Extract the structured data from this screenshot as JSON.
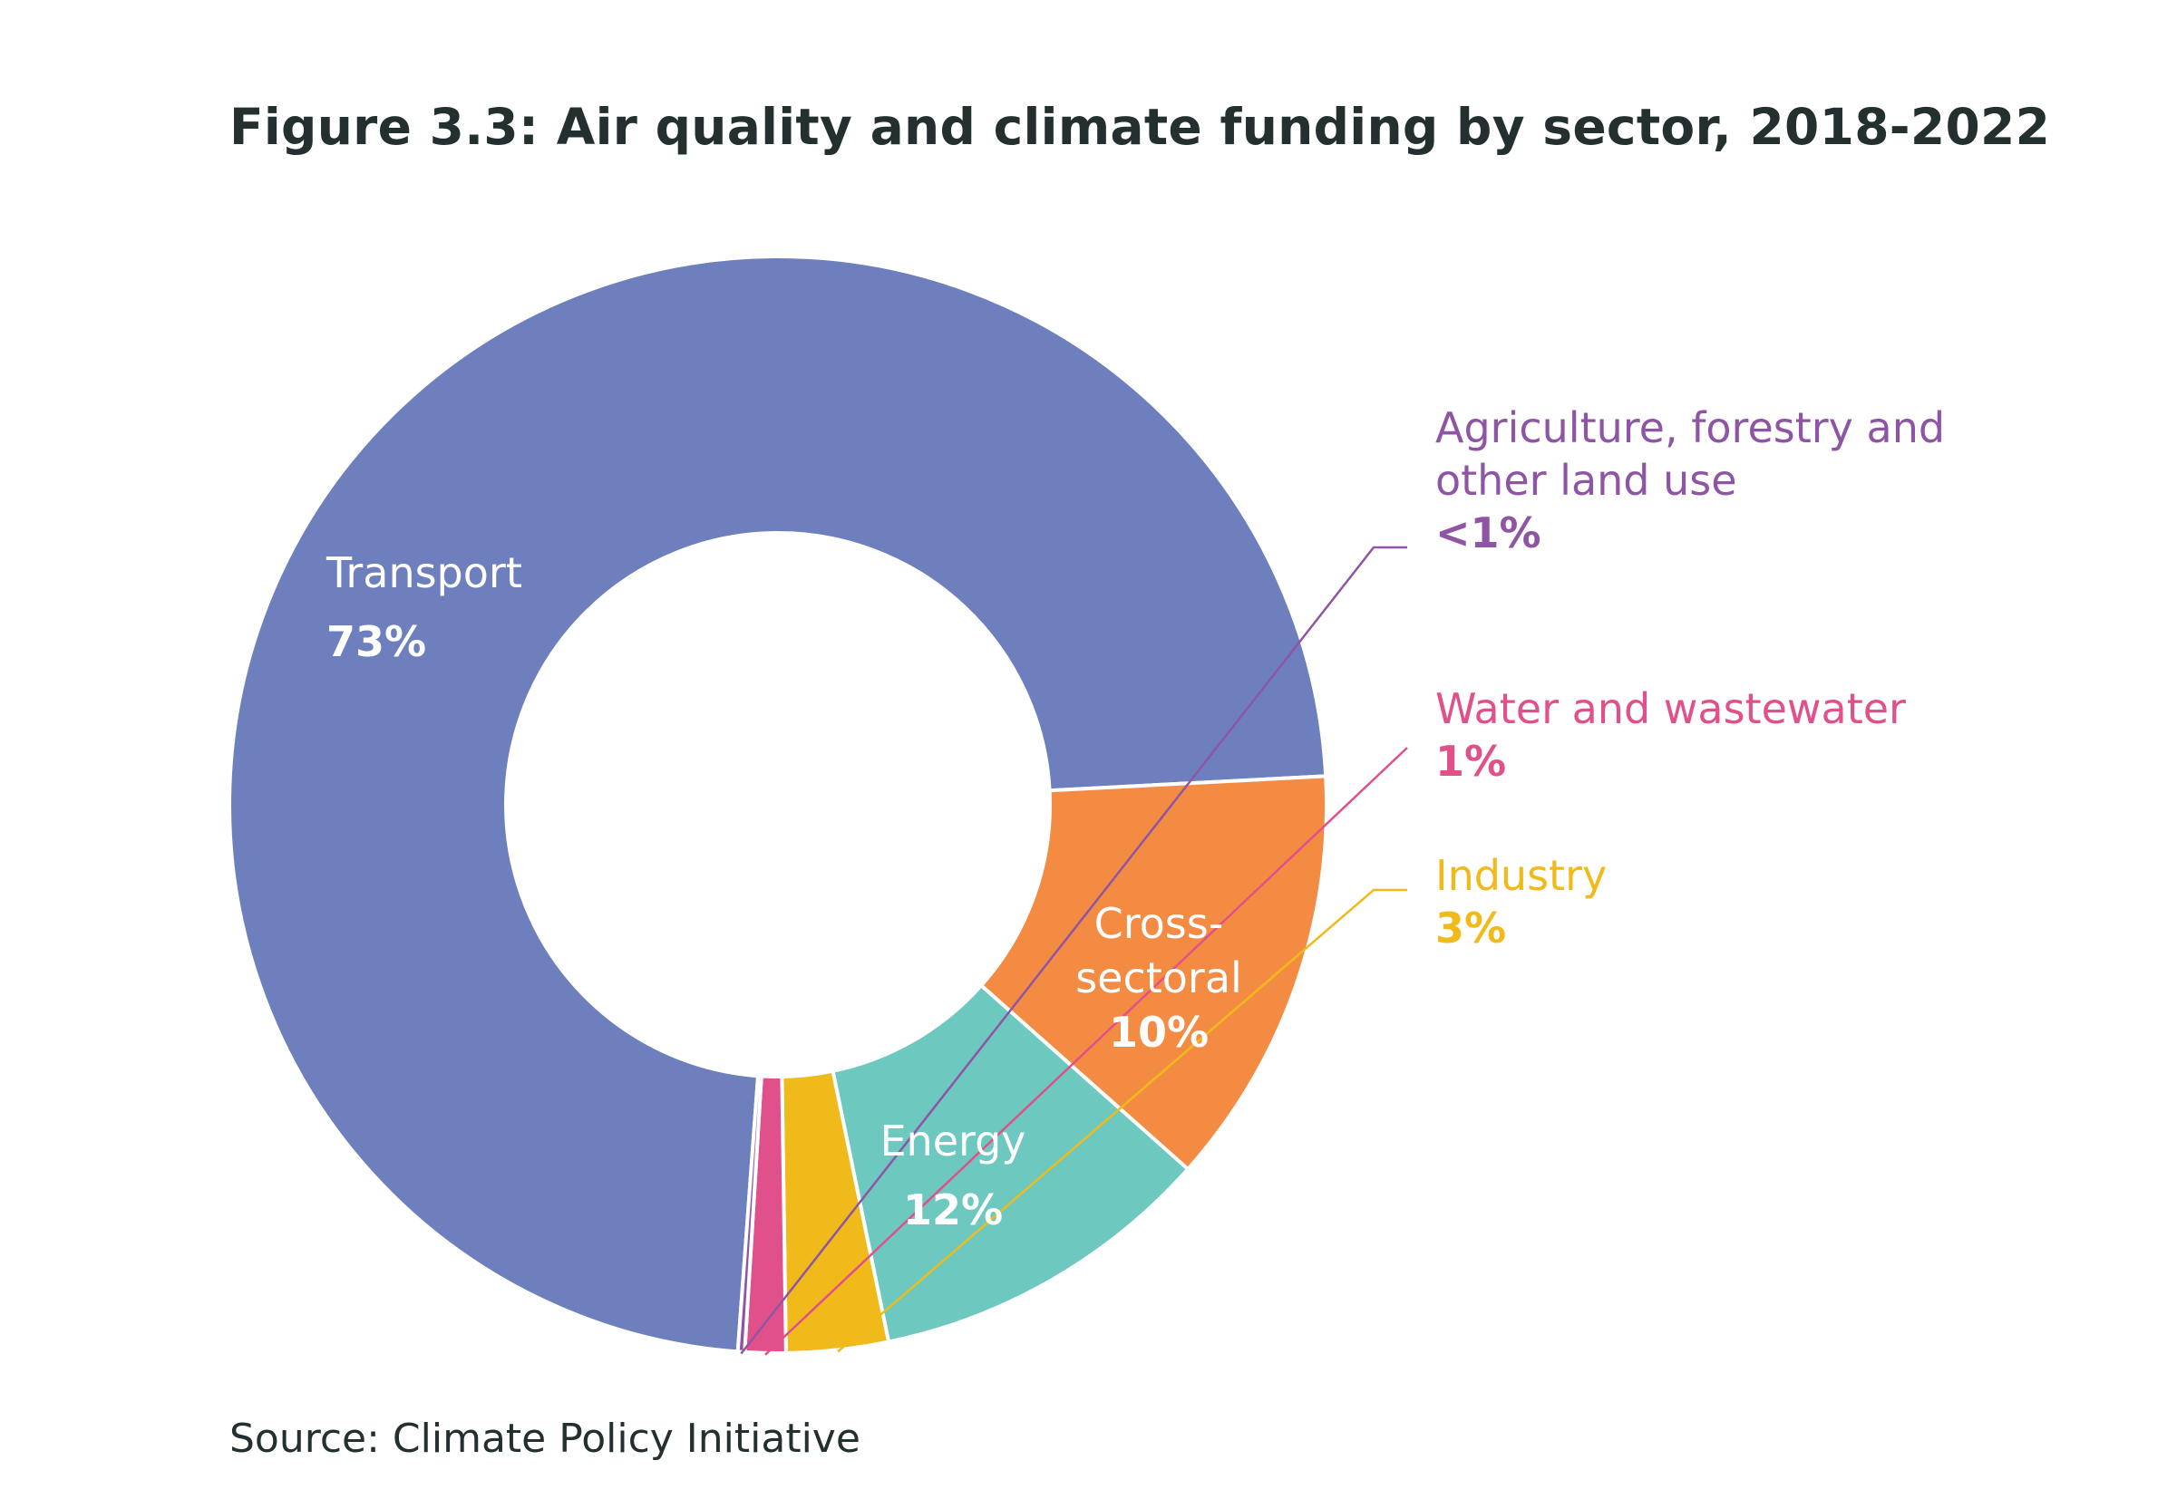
{
  "chart_data": {
    "type": "pie",
    "variant": "donut",
    "title": "Figure 3.3: Air quality and climate funding by sector, 2018-2022",
    "unit": "%",
    "slices": [
      {
        "key": "transport",
        "name": "Transport",
        "value": 73.0,
        "label": "73%",
        "color": "#6e7fbd",
        "label_style": "inside"
      },
      {
        "key": "energy",
        "name": "Energy",
        "value": 12.4,
        "label": "12%",
        "color": "#f48b43",
        "label_style": "inside"
      },
      {
        "key": "cross_sectoral",
        "name": "Cross-sectoral",
        "value": 10.2,
        "label": "10%",
        "color": "#6dc8bf",
        "label_style": "inside"
      },
      {
        "key": "industry",
        "name": "Industry",
        "value": 3.0,
        "label": "3%",
        "color": "#f0ba1b",
        "label_style": "callout"
      },
      {
        "key": "water",
        "name": "Water and wastewater",
        "value": 1.2,
        "label": "1%",
        "color": "#e0508a",
        "label_style": "callout"
      },
      {
        "key": "afolu",
        "name": "Agriculture, forestry and other land use",
        "value": 0.2,
        "label": "<1%",
        "color": "#8f55a5",
        "label_style": "callout"
      }
    ],
    "source": "Source: Climate Policy Initiative"
  }
}
